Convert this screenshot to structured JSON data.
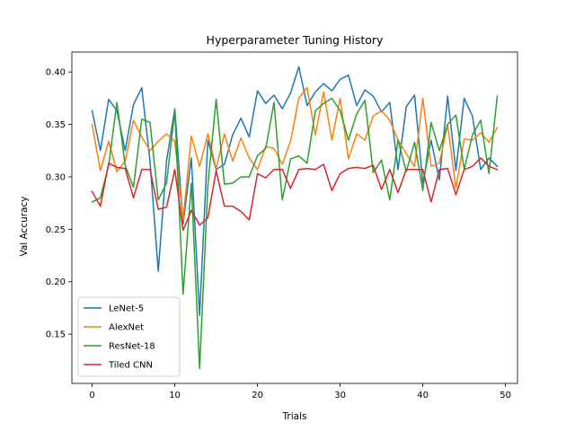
{
  "chart_data": {
    "type": "line",
    "title": "Hyperparameter Tuning History",
    "xlabel": "Trials",
    "ylabel": "Val Accuracy",
    "xlim": [
      -2.45,
      51.45
    ],
    "ylim": [
      0.103,
      0.419
    ],
    "xticks": [
      0,
      10,
      20,
      30,
      40,
      50
    ],
    "yticks": [
      0.15,
      0.2,
      0.25,
      0.3,
      0.35,
      0.4
    ],
    "ytick_labels": [
      "0.15",
      "0.20",
      "0.25",
      "0.30",
      "0.35",
      "0.40"
    ],
    "grid": false,
    "legend_position": "lower-left",
    "x": [
      0,
      1,
      2,
      3,
      4,
      5,
      6,
      7,
      8,
      9,
      10,
      11,
      12,
      13,
      14,
      15,
      16,
      17,
      18,
      19,
      20,
      21,
      22,
      23,
      24,
      25,
      26,
      27,
      28,
      29,
      30,
      31,
      32,
      33,
      34,
      35,
      36,
      37,
      38,
      39,
      40,
      41,
      42,
      43,
      44,
      45,
      46,
      47,
      48,
      49
    ],
    "series": [
      {
        "name": "LeNet-5",
        "color": "#1f77b4",
        "values": [
          0.363,
          0.325,
          0.374,
          0.363,
          0.325,
          0.369,
          0.385,
          0.315,
          0.21,
          0.315,
          0.365,
          0.255,
          0.318,
          0.168,
          0.335,
          0.307,
          0.312,
          0.34,
          0.356,
          0.338,
          0.382,
          0.37,
          0.378,
          0.365,
          0.38,
          0.405,
          0.368,
          0.381,
          0.389,
          0.382,
          0.393,
          0.397,
          0.368,
          0.383,
          0.377,
          0.362,
          0.371,
          0.307,
          0.367,
          0.378,
          0.294,
          0.335,
          0.297,
          0.377,
          0.306,
          0.375,
          0.358,
          0.307,
          0.318,
          0.31
        ]
      },
      {
        "name": "AlexNet",
        "color": "#ff7f0e",
        "values": [
          0.35,
          0.306,
          0.334,
          0.305,
          0.315,
          0.354,
          0.338,
          0.325,
          0.334,
          0.341,
          0.334,
          0.259,
          0.339,
          0.31,
          0.341,
          0.308,
          0.341,
          0.315,
          0.337,
          0.318,
          0.307,
          0.329,
          0.327,
          0.312,
          0.334,
          0.375,
          0.385,
          0.34,
          0.381,
          0.335,
          0.375,
          0.317,
          0.341,
          0.335,
          0.358,
          0.363,
          0.354,
          0.335,
          0.322,
          0.31,
          0.375,
          0.31,
          0.313,
          0.35,
          0.289,
          0.336,
          0.335,
          0.342,
          0.333,
          0.347
        ]
      },
      {
        "name": "ResNet-18",
        "color": "#2ca02c",
        "values": [
          0.276,
          0.28,
          0.311,
          0.371,
          0.311,
          0.29,
          0.355,
          0.352,
          0.278,
          0.294,
          0.363,
          0.188,
          0.294,
          0.117,
          0.292,
          0.374,
          0.293,
          0.294,
          0.3,
          0.3,
          0.32,
          0.327,
          0.371,
          0.278,
          0.317,
          0.32,
          0.313,
          0.363,
          0.37,
          0.375,
          0.363,
          0.335,
          0.36,
          0.373,
          0.304,
          0.316,
          0.278,
          0.335,
          0.305,
          0.333,
          0.287,
          0.352,
          0.325,
          0.35,
          0.359,
          0.307,
          0.34,
          0.354,
          0.303,
          0.377
        ]
      },
      {
        "name": "Tiled CNN",
        "color": "#d62728",
        "values": [
          0.286,
          0.272,
          0.313,
          0.309,
          0.308,
          0.28,
          0.307,
          0.307,
          0.269,
          0.271,
          0.307,
          0.249,
          0.268,
          0.254,
          0.261,
          0.306,
          0.272,
          0.272,
          0.267,
          0.259,
          0.303,
          0.299,
          0.307,
          0.307,
          0.289,
          0.307,
          0.308,
          0.307,
          0.312,
          0.287,
          0.303,
          0.308,
          0.309,
          0.308,
          0.311,
          0.288,
          0.307,
          0.285,
          0.307,
          0.307,
          0.307,
          0.276,
          0.307,
          0.308,
          0.283,
          0.307,
          0.31,
          0.318,
          0.31,
          0.307
        ]
      }
    ]
  }
}
